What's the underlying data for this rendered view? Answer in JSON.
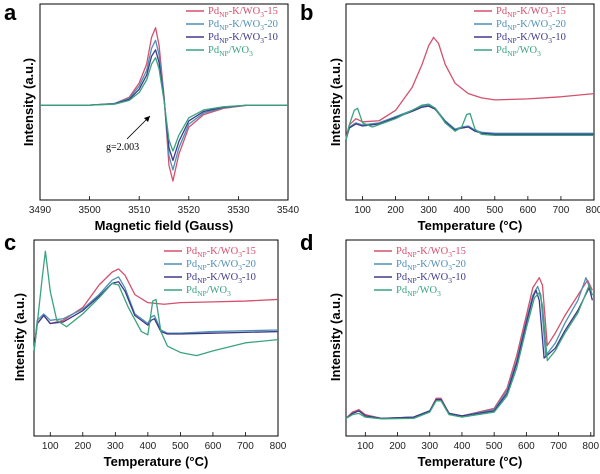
{
  "colors": {
    "Pd-K/WO3-15": "#d4506d",
    "Pd-K/WO3-20": "#4f8fb4",
    "Pd-K/WO3-10": "#3e3a88",
    "Pd/WO3": "#3aa37e"
  },
  "legend_labels": {
    "k15": {
      "a": "Pd",
      "sub": "NP",
      "b": "-K/WO",
      "sub2": "3",
      "c": "-15"
    },
    "k20": {
      "a": "Pd",
      "sub": "NP",
      "b": "-K/WO",
      "sub2": "3",
      "c": "-20"
    },
    "k10": {
      "a": "Pd",
      "sub": "NP",
      "b": "-K/WO",
      "sub2": "3",
      "c": "-10"
    },
    "pw": {
      "a": "Pd",
      "sub": "NP",
      "b": "/WO",
      "sub2": "3",
      "c": ""
    }
  },
  "chart_data": [
    {
      "panel": "a",
      "type": "line",
      "xlabel": "Magnetic field (Gauss)",
      "ylabel": "Intensity (a.u.)",
      "xlim": [
        3490,
        3540
      ],
      "xticks": [
        3490,
        3500,
        3510,
        3520,
        3530,
        3540
      ],
      "annotation": "g=2.003",
      "legend": "top-right",
      "yticks_shown": false,
      "series": [
        {
          "key": "Pd-K/WO3-15",
          "x": [
            3490,
            3500,
            3505,
            3508,
            3510,
            3511.5,
            3512.5,
            3513.3,
            3514,
            3515,
            3516,
            3516.8,
            3518,
            3520,
            3523,
            3527,
            3532,
            3540
          ],
          "y": [
            0,
            0,
            0.05,
            0.25,
            0.7,
            1.3,
            2.15,
            2.45,
            1.9,
            0.3,
            -1.9,
            -2.4,
            -1.55,
            -0.7,
            -0.3,
            -0.1,
            0,
            0
          ]
        },
        {
          "key": "Pd-K/WO3-20",
          "x": [
            3490,
            3500,
            3505,
            3508,
            3510,
            3511.5,
            3512.5,
            3513.3,
            3514,
            3515,
            3516,
            3516.8,
            3518,
            3520,
            3523,
            3527,
            3532,
            3540
          ],
          "y": [
            0,
            0,
            0.05,
            0.22,
            0.6,
            1.1,
            1.8,
            2.05,
            1.6,
            0.25,
            -1.6,
            -2.05,
            -1.35,
            -0.6,
            -0.25,
            -0.08,
            0,
            0
          ]
        },
        {
          "key": "Pd-K/WO3-10",
          "x": [
            3490,
            3500,
            3505,
            3508,
            3510,
            3511.5,
            3512.5,
            3513.3,
            3514,
            3515,
            3516,
            3516.8,
            3518,
            3520,
            3523,
            3527,
            3532,
            3540
          ],
          "y": [
            0,
            0,
            0.04,
            0.18,
            0.5,
            0.95,
            1.55,
            1.75,
            1.35,
            0.2,
            -1.35,
            -1.75,
            -1.15,
            -0.5,
            -0.2,
            -0.06,
            0,
            0
          ]
        },
        {
          "key": "Pd/WO3",
          "x": [
            3490,
            3500,
            3505,
            3508,
            3510,
            3511.5,
            3512.5,
            3513.3,
            3514,
            3515,
            3516,
            3516.8,
            3518,
            3520,
            3523,
            3527,
            3532,
            3540
          ],
          "y": [
            0,
            0,
            0.03,
            0.15,
            0.4,
            0.8,
            1.3,
            1.5,
            1.15,
            0.15,
            -1.1,
            -1.45,
            -0.95,
            -0.4,
            -0.15,
            -0.05,
            0,
            0
          ]
        }
      ]
    },
    {
      "panel": "b",
      "type": "line",
      "xlabel": "Temperature (°C)",
      "ylabel": "Intensity (a.u.)",
      "xlim": [
        50,
        800
      ],
      "xticks": [
        100,
        200,
        300,
        400,
        500,
        600,
        700,
        800
      ],
      "legend": "top-right",
      "yticks_shown": false,
      "series": [
        {
          "key": "Pd-K/WO3-15",
          "x": [
            50,
            60,
            80,
            100,
            150,
            200,
            250,
            280,
            300,
            315,
            330,
            350,
            380,
            420,
            460,
            500,
            600,
            700,
            800
          ],
          "y": [
            0.2,
            0.8,
            1.1,
            0.95,
            1.0,
            1.5,
            2.6,
            3.7,
            4.6,
            5.0,
            4.7,
            3.7,
            2.8,
            2.3,
            2.1,
            2.0,
            2.05,
            2.15,
            2.3
          ]
        },
        {
          "key": "Pd-K/WO3-20",
          "x": [
            50,
            60,
            80,
            100,
            150,
            200,
            250,
            280,
            300,
            320,
            350,
            380,
            400,
            420,
            440,
            460,
            500,
            600,
            700,
            800
          ],
          "y": [
            0.1,
            0.7,
            0.9,
            0.8,
            0.9,
            1.2,
            1.5,
            1.7,
            1.75,
            1.6,
            1.0,
            0.6,
            0.7,
            0.75,
            0.55,
            0.45,
            0.4,
            0.4,
            0.4,
            0.4
          ]
        },
        {
          "key": "Pd-K/WO3-10",
          "x": [
            50,
            60,
            80,
            100,
            150,
            200,
            250,
            280,
            300,
            320,
            350,
            380,
            400,
            420,
            440,
            460,
            500,
            600,
            700,
            800
          ],
          "y": [
            0.1,
            0.65,
            0.85,
            0.75,
            0.85,
            1.15,
            1.45,
            1.65,
            1.7,
            1.55,
            0.95,
            0.55,
            0.65,
            0.7,
            0.5,
            0.4,
            0.35,
            0.35,
            0.35,
            0.35
          ]
        },
        {
          "key": "Pd/WO3",
          "x": [
            50,
            60,
            75,
            85,
            100,
            130,
            200,
            250,
            280,
            300,
            320,
            350,
            380,
            400,
            415,
            425,
            440,
            460,
            500,
            600,
            700,
            800
          ],
          "y": [
            0.1,
            0.8,
            1.5,
            1.6,
            0.9,
            0.7,
            1.1,
            1.5,
            1.75,
            1.8,
            1.6,
            0.9,
            0.5,
            0.7,
            1.3,
            1.35,
            0.6,
            0.35,
            0.3,
            0.3,
            0.3,
            0.3
          ]
        }
      ]
    },
    {
      "panel": "c",
      "type": "line",
      "xlabel": "Temperature (°C)",
      "ylabel": "Intensity (a.u.)",
      "xlim": [
        50,
        800
      ],
      "xticks": [
        100,
        200,
        300,
        400,
        500,
        600,
        700,
        800
      ],
      "legend": "top-right",
      "yticks_shown": false,
      "series": [
        {
          "key": "Pd-K/WO3-15",
          "x": [
            50,
            60,
            80,
            100,
            140,
            200,
            250,
            290,
            310,
            330,
            360,
            400,
            450,
            500,
            600,
            700,
            800
          ],
          "y": [
            0.3,
            2.0,
            2.5,
            2.0,
            2.2,
            3.0,
            4.4,
            5.2,
            5.4,
            5.0,
            3.8,
            3.3,
            3.2,
            3.3,
            3.35,
            3.4,
            3.5
          ]
        },
        {
          "key": "Pd-K/WO3-20",
          "x": [
            50,
            60,
            80,
            100,
            140,
            200,
            250,
            290,
            310,
            330,
            360,
            400,
            410,
            420,
            440,
            460,
            500,
            600,
            700,
            800
          ],
          "y": [
            0.3,
            2.2,
            2.6,
            2.2,
            2.3,
            2.9,
            3.8,
            4.7,
            4.9,
            4.2,
            2.6,
            2.0,
            2.4,
            2.5,
            1.6,
            1.4,
            1.4,
            1.5,
            1.55,
            1.6
          ]
        },
        {
          "key": "Pd-K/WO3-10",
          "x": [
            50,
            60,
            80,
            100,
            140,
            200,
            250,
            290,
            310,
            330,
            360,
            400,
            410,
            420,
            440,
            460,
            500,
            600,
            700,
            800
          ],
          "y": [
            0.3,
            2.0,
            2.5,
            2.0,
            2.1,
            2.8,
            3.7,
            4.5,
            4.6,
            4.0,
            2.5,
            1.9,
            2.2,
            2.3,
            1.5,
            1.35,
            1.35,
            1.4,
            1.45,
            1.5
          ]
        },
        {
          "key": "Pd/WO3",
          "x": [
            50,
            60,
            75,
            85,
            100,
            120,
            150,
            200,
            250,
            290,
            310,
            340,
            380,
            400,
            415,
            425,
            440,
            460,
            500,
            550,
            600,
            700,
            800
          ],
          "y": [
            0.3,
            2.0,
            4.8,
            6.5,
            4.0,
            2.2,
            1.8,
            2.6,
            3.6,
            4.5,
            4.4,
            3.0,
            1.5,
            1.3,
            3.4,
            3.5,
            1.5,
            0.6,
            0.2,
            0.0,
            0.3,
            0.8,
            1.0
          ]
        }
      ]
    },
    {
      "panel": "d",
      "type": "line",
      "xlabel": "Temperature (°C)",
      "ylabel": "Intensity (a.u.)",
      "xlim": [
        40,
        810
      ],
      "xticks": [
        100,
        200,
        300,
        400,
        500,
        600,
        700,
        800
      ],
      "legend": "top-left",
      "yticks_shown": false,
      "series": [
        {
          "key": "Pd-K/WO3-15",
          "x": [
            40,
            60,
            80,
            100,
            150,
            250,
            300,
            320,
            335,
            360,
            400,
            500,
            540,
            570,
            600,
            620,
            640,
            650,
            665,
            690,
            720,
            760,
            790,
            805
          ],
          "y": [
            0.1,
            0.35,
            0.45,
            0.25,
            0.1,
            0.15,
            0.4,
            0.9,
            0.9,
            0.3,
            0.2,
            0.5,
            1.3,
            2.6,
            4.2,
            5.3,
            5.7,
            5.4,
            3.0,
            3.5,
            4.2,
            5.0,
            5.6,
            5.2
          ]
        },
        {
          "key": "Pd-K/WO3-20",
          "x": [
            40,
            60,
            80,
            100,
            150,
            250,
            300,
            320,
            335,
            360,
            400,
            500,
            540,
            570,
            600,
            620,
            635,
            645,
            660,
            690,
            720,
            760,
            785,
            805
          ],
          "y": [
            0.1,
            0.3,
            0.4,
            0.2,
            0.1,
            0.15,
            0.4,
            0.85,
            0.85,
            0.3,
            0.2,
            0.45,
            1.2,
            2.4,
            4.0,
            5.0,
            5.35,
            5.0,
            2.6,
            3.1,
            3.9,
            4.8,
            5.7,
            5.0
          ]
        },
        {
          "key": "Pd-K/WO3-10",
          "x": [
            40,
            60,
            80,
            100,
            150,
            250,
            300,
            320,
            335,
            360,
            400,
            500,
            540,
            570,
            600,
            620,
            630,
            640,
            655,
            690,
            720,
            760,
            795,
            805
          ],
          "y": [
            0.1,
            0.3,
            0.4,
            0.2,
            0.1,
            0.15,
            0.4,
            0.85,
            0.85,
            0.3,
            0.2,
            0.4,
            1.1,
            2.3,
            3.9,
            4.9,
            5.2,
            4.8,
            2.5,
            2.9,
            3.6,
            4.4,
            5.3,
            4.8
          ]
        },
        {
          "key": "Pd/WO3",
          "x": [
            40,
            60,
            80,
            100,
            150,
            250,
            300,
            320,
            335,
            360,
            400,
            500,
            540,
            570,
            600,
            625,
            640,
            650,
            665,
            690,
            720,
            760,
            795,
            805
          ],
          "y": [
            0.1,
            0.25,
            0.3,
            0.15,
            0.08,
            0.1,
            0.35,
            0.8,
            0.8,
            0.25,
            0.15,
            0.35,
            1.0,
            2.1,
            3.7,
            4.9,
            5.1,
            4.6,
            2.4,
            2.8,
            3.5,
            4.3,
            5.4,
            5.0
          ]
        }
      ]
    }
  ]
}
